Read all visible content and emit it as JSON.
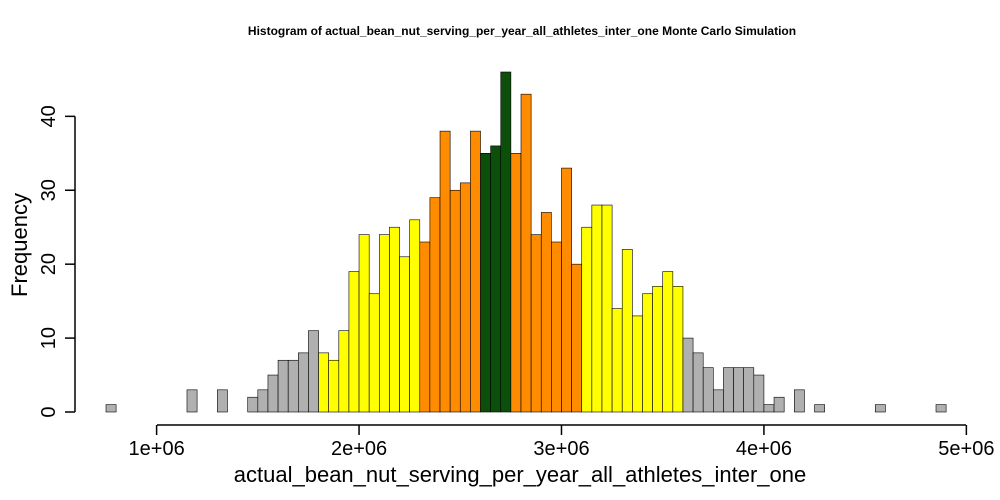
{
  "chart_data": {
    "type": "bar",
    "title": "Histogram of  actual_bean_nut_serving_per_year_all_athletes_inter_one  Monte Carlo Simulation",
    "xlabel": "actual_bean_nut_serving_per_year_all_athletes_inter_one",
    "ylabel": "Frequency",
    "bin_start": 750000,
    "bin_width": 50000,
    "xlim": [
      750000,
      4850000
    ],
    "ylim": [
      0,
      46
    ],
    "x_ticks": [
      1000000,
      2000000,
      3000000,
      4000000,
      5000000
    ],
    "x_tick_labels": [
      "1e+06",
      "2e+06",
      "3e+06",
      "4e+06",
      "5e+06"
    ],
    "y_ticks": [
      0,
      10,
      20,
      30,
      40
    ],
    "y_tick_labels": [
      "0",
      "10",
      "20",
      "30",
      "40"
    ],
    "values": [
      1,
      0,
      0,
      0,
      0,
      0,
      0,
      0,
      3,
      0,
      0,
      3,
      0,
      0,
      2,
      3,
      5,
      7,
      7,
      8,
      11,
      8,
      7,
      11,
      19,
      24,
      16,
      24,
      25,
      21,
      26,
      23,
      29,
      38,
      30,
      31,
      38,
      35,
      36,
      46,
      35,
      43,
      24,
      27,
      23,
      33,
      20,
      25,
      28,
      28,
      14,
      22,
      13,
      16,
      17,
      19,
      17,
      10,
      8,
      6,
      3,
      6,
      6,
      6,
      5,
      1,
      2,
      0,
      3,
      0,
      1,
      0,
      0,
      0,
      0,
      0,
      1,
      0,
      0,
      0,
      0,
      0,
      1
    ],
    "color_bands": [
      {
        "from": 0,
        "to": 2050000,
        "color": "#b0b0b0"
      },
      {
        "from": 1800000,
        "to": 2300000,
        "color": "#ffff00"
      },
      {
        "from": 2300000,
        "to": 2600000,
        "color": "#ff8c00"
      },
      {
        "from": 2600000,
        "to": 2750000,
        "color": "#0b4f0b"
      },
      {
        "from": 2750000,
        "to": 3100000,
        "color": "#ff8c00"
      },
      {
        "from": 3100000,
        "to": 3600000,
        "color": "#ffff00"
      },
      {
        "from": 3600000,
        "to": 99000000,
        "color": "#b0b0b0"
      }
    ]
  }
}
